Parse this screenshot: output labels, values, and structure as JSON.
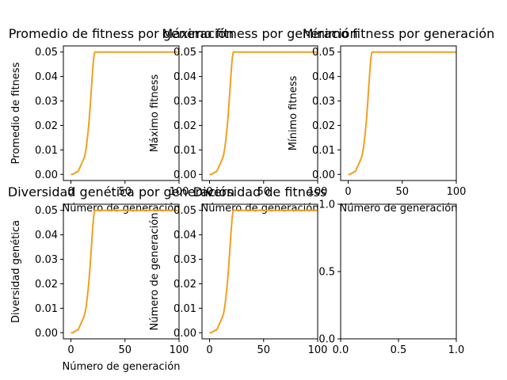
{
  "figure": {
    "background": "#ffffff",
    "line_color": "#f0a020"
  },
  "chart_data": [
    {
      "type": "line",
      "title": "Promedio de fitness por generación",
      "xlabel": "Número de generación",
      "ylabel": "Promedio de fitness",
      "xlim": [
        -7,
        100
      ],
      "ylim": [
        -0.0025,
        0.0525
      ],
      "xticks": [
        "0",
        "50",
        "100"
      ],
      "xtick_values": [
        0,
        50,
        100
      ],
      "yticks": [
        "0.00",
        "0.01",
        "0.02",
        "0.03",
        "0.04",
        "0.05"
      ],
      "ytick_values": [
        0,
        0.01,
        0.02,
        0.03,
        0.04,
        0.05
      ],
      "series": [
        {
          "x": [
            0,
            2,
            3,
            4,
            5,
            6,
            7,
            8,
            9,
            10,
            11,
            12,
            13,
            14,
            15,
            16,
            17,
            18,
            19,
            20,
            21,
            22,
            23,
            24,
            30,
            40,
            50,
            60,
            70,
            80,
            90,
            100
          ],
          "values": [
            0.0,
            0.0,
            0.0005,
            0.0005,
            0.001,
            0.001,
            0.0015,
            0.0025,
            0.0035,
            0.0045,
            0.0055,
            0.0065,
            0.008,
            0.0105,
            0.014,
            0.018,
            0.023,
            0.029,
            0.0355,
            0.042,
            0.0475,
            0.05,
            0.05,
            0.05,
            0.05,
            0.05,
            0.05,
            0.05,
            0.05,
            0.05,
            0.05,
            0.05
          ]
        }
      ]
    },
    {
      "type": "line",
      "title": "Máximo fitness por generación",
      "xlabel": "Número de generación",
      "ylabel": "Máximo fitness",
      "xlim": [
        -7,
        100
      ],
      "ylim": [
        -0.0025,
        0.0525
      ],
      "xticks": [
        "0",
        "50",
        "100"
      ],
      "xtick_values": [
        0,
        50,
        100
      ],
      "yticks": [
        "0.00",
        "0.01",
        "0.02",
        "0.03",
        "0.04",
        "0.05"
      ],
      "ytick_values": [
        0,
        0.01,
        0.02,
        0.03,
        0.04,
        0.05
      ],
      "series": [
        {
          "x": [
            0,
            2,
            3,
            4,
            5,
            6,
            7,
            8,
            9,
            10,
            11,
            12,
            13,
            14,
            15,
            16,
            17,
            18,
            19,
            20,
            21,
            22,
            23,
            24,
            30,
            40,
            50,
            60,
            70,
            80,
            90,
            100
          ],
          "values": [
            0.0,
            0.0,
            0.0005,
            0.0005,
            0.001,
            0.001,
            0.0015,
            0.0025,
            0.0035,
            0.0045,
            0.0055,
            0.0065,
            0.008,
            0.0105,
            0.014,
            0.018,
            0.023,
            0.029,
            0.0355,
            0.042,
            0.0475,
            0.05,
            0.05,
            0.05,
            0.05,
            0.05,
            0.05,
            0.05,
            0.05,
            0.05,
            0.05,
            0.05
          ]
        }
      ]
    },
    {
      "type": "line",
      "title": "Mínimo fitness por generación",
      "xlabel": "Número de generación",
      "ylabel": "Mínimo fitness",
      "xlim": [
        -7,
        100
      ],
      "ylim": [
        -0.0025,
        0.0525
      ],
      "xticks": [
        "0",
        "50",
        "100"
      ],
      "xtick_values": [
        0,
        50,
        100
      ],
      "yticks": [
        "0.00",
        "0.01",
        "0.02",
        "0.03",
        "0.04",
        "0.05"
      ],
      "ytick_values": [
        0,
        0.01,
        0.02,
        0.03,
        0.04,
        0.05
      ],
      "series": [
        {
          "x": [
            0,
            2,
            3,
            4,
            5,
            6,
            7,
            8,
            9,
            10,
            11,
            12,
            13,
            14,
            15,
            16,
            17,
            18,
            19,
            20,
            21,
            22,
            23,
            24,
            30,
            40,
            50,
            60,
            70,
            80,
            90,
            100
          ],
          "values": [
            0.0,
            0.0,
            0.0005,
            0.0005,
            0.001,
            0.001,
            0.0015,
            0.0025,
            0.0035,
            0.0045,
            0.0055,
            0.0065,
            0.008,
            0.0105,
            0.014,
            0.018,
            0.023,
            0.029,
            0.0355,
            0.042,
            0.0475,
            0.05,
            0.05,
            0.05,
            0.05,
            0.05,
            0.05,
            0.05,
            0.05,
            0.05,
            0.05,
            0.05
          ]
        }
      ]
    },
    {
      "type": "line",
      "title": "Diversidad genética por generación",
      "xlabel": "Número de generación",
      "ylabel": "Diversidad genética",
      "xlim": [
        -7,
        100
      ],
      "ylim": [
        -0.0025,
        0.0525
      ],
      "xticks": [
        "0",
        "50",
        "100"
      ],
      "xtick_values": [
        0,
        50,
        100
      ],
      "yticks": [
        "0.00",
        "0.01",
        "0.02",
        "0.03",
        "0.04",
        "0.05"
      ],
      "ytick_values": [
        0,
        0.01,
        0.02,
        0.03,
        0.04,
        0.05
      ],
      "series": [
        {
          "x": [
            0,
            2,
            3,
            4,
            5,
            6,
            7,
            8,
            9,
            10,
            11,
            12,
            13,
            14,
            15,
            16,
            17,
            18,
            19,
            20,
            21,
            22,
            23,
            24,
            30,
            40,
            50,
            60,
            70,
            80,
            90,
            100
          ],
          "values": [
            0.0,
            0.0,
            0.0005,
            0.0005,
            0.001,
            0.001,
            0.0015,
            0.0025,
            0.0035,
            0.0045,
            0.0055,
            0.0065,
            0.008,
            0.0105,
            0.014,
            0.018,
            0.023,
            0.029,
            0.0355,
            0.042,
            0.0475,
            0.05,
            0.05,
            0.05,
            0.05,
            0.05,
            0.05,
            0.05,
            0.05,
            0.05,
            0.05,
            0.05
          ]
        }
      ]
    },
    {
      "type": "line",
      "title": "Diversidad de fitness",
      "xlabel": "",
      "ylabel": "Número de generación",
      "xlim": [
        -7,
        100
      ],
      "ylim": [
        -0.0025,
        0.0525
      ],
      "xticks": [
        "0",
        "50",
        "100"
      ],
      "xtick_values": [
        0,
        50,
        100
      ],
      "yticks": [
        "0.00",
        "0.01",
        "0.02",
        "0.03",
        "0.04",
        "0.05"
      ],
      "ytick_values": [
        0,
        0.01,
        0.02,
        0.03,
        0.04,
        0.05
      ],
      "series": [
        {
          "x": [
            0,
            2,
            3,
            4,
            5,
            6,
            7,
            8,
            9,
            10,
            11,
            12,
            13,
            14,
            15,
            16,
            17,
            18,
            19,
            20,
            21,
            22,
            23,
            24,
            30,
            40,
            50,
            60,
            70,
            80,
            90,
            100
          ],
          "values": [
            0.0,
            0.0,
            0.0005,
            0.0005,
            0.001,
            0.001,
            0.0015,
            0.0025,
            0.0035,
            0.0045,
            0.0055,
            0.0065,
            0.008,
            0.0105,
            0.014,
            0.018,
            0.023,
            0.029,
            0.0355,
            0.042,
            0.0475,
            0.05,
            0.05,
            0.05,
            0.05,
            0.05,
            0.05,
            0.05,
            0.05,
            0.05,
            0.05,
            0.05
          ]
        }
      ]
    },
    {
      "type": "line",
      "title": "",
      "xlabel": "",
      "ylabel": "",
      "xlim": [
        0,
        1
      ],
      "ylim": [
        0,
        1
      ],
      "xticks": [
        "0.0",
        "0.5",
        "1.0"
      ],
      "xtick_values": [
        0,
        0.5,
        1
      ],
      "yticks": [
        "0.0",
        "0.5",
        "1.0"
      ],
      "ytick_values": [
        0,
        0.5,
        1
      ],
      "series": []
    }
  ]
}
